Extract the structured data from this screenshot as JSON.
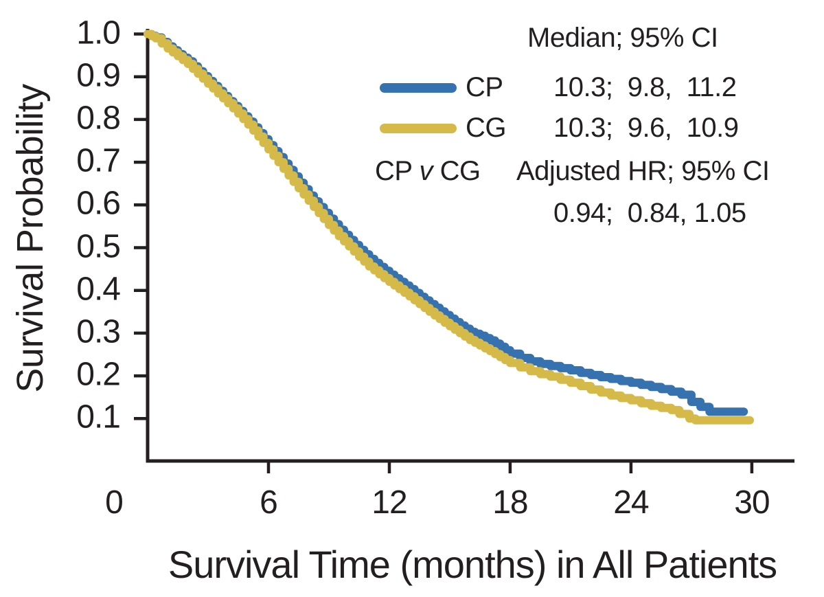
{
  "legend": {
    "header": "Median; 95% CI",
    "rows": [
      {
        "name": "CP",
        "values": "10.3;  9.8,  11.2"
      },
      {
        "name": "CG",
        "values": "10.3;  9.6,  10.9"
      }
    ],
    "comparison": {
      "pre": "CP ",
      "italic_v": "v",
      "post": " CG",
      "header": "Adjusted HR; 95% CI",
      "values": "0.94;  0.84, 1.05"
    }
  },
  "colors": {
    "cp": "#3672B0",
    "cg": "#D6BA49",
    "axis": "#231F20"
  },
  "chart_data": {
    "type": "line",
    "subtype": "kaplan-meier-step",
    "title": "",
    "xlabel": "Survival Time (months) in All Patients",
    "ylabel": "Survival Probability",
    "xlim": [
      0,
      32
    ],
    "ylim": [
      0,
      1.0
    ],
    "x_ticks": [
      0,
      6,
      12,
      18,
      24,
      30
    ],
    "y_ticks": [
      0.1,
      0.2,
      0.3,
      0.4,
      0.5,
      0.6,
      0.7,
      0.8,
      0.9,
      1.0
    ],
    "grid": false,
    "legend_position": "upper right",
    "series": [
      {
        "name": "CP",
        "color": "#3672B0",
        "median": "10.3",
        "ci_95": "9.8, 11.2",
        "x": [
          0,
          0.4,
          1,
          1.5,
          2,
          2.5,
          3,
          3.5,
          4,
          4.5,
          5,
          5.5,
          6,
          6.5,
          7,
          7.5,
          8,
          8.5,
          9,
          9.5,
          10,
          10.5,
          11,
          11.5,
          12,
          12.5,
          13,
          13.5,
          14,
          14.5,
          15,
          15.5,
          16,
          16.5,
          17,
          17.5,
          18,
          18.5,
          19,
          19.5,
          20,
          20.5,
          21,
          21.5,
          22,
          22.5,
          23,
          23.5,
          24,
          24.5,
          25,
          25.5,
          26,
          26.5,
          27,
          27.9,
          29.6
        ],
        "y": [
          1.0,
          0.992,
          0.971,
          0.953,
          0.936,
          0.913,
          0.89,
          0.867,
          0.843,
          0.82,
          0.795,
          0.768,
          0.74,
          0.712,
          0.682,
          0.652,
          0.622,
          0.595,
          0.568,
          0.542,
          0.518,
          0.495,
          0.474,
          0.455,
          0.437,
          0.42,
          0.403,
          0.385,
          0.368,
          0.351,
          0.334,
          0.318,
          0.303,
          0.294,
          0.283,
          0.268,
          0.252,
          0.242,
          0.234,
          0.228,
          0.223,
          0.218,
          0.213,
          0.207,
          0.202,
          0.197,
          0.193,
          0.188,
          0.184,
          0.179,
          0.174,
          0.169,
          0.163,
          0.156,
          0.139,
          0.116,
          0.116
        ]
      },
      {
        "name": "CG",
        "color": "#D6BA49",
        "median": "10.3",
        "ci_95": "9.6, 10.9",
        "x": [
          0,
          0.4,
          1,
          1.5,
          2,
          2.5,
          3,
          3.5,
          4,
          4.5,
          5,
          5.5,
          6,
          6.5,
          7,
          7.5,
          8,
          8.5,
          9,
          9.5,
          10,
          10.5,
          11,
          11.5,
          12,
          12.5,
          13,
          13.5,
          14,
          14.5,
          15,
          15.5,
          16,
          16.5,
          17,
          17.5,
          18,
          18.5,
          19,
          19.5,
          20,
          20.5,
          21,
          21.5,
          22,
          22.5,
          23,
          23.5,
          24,
          24.5,
          25,
          25.5,
          26,
          26.4,
          26.9,
          27.2,
          29.9
        ],
        "y": [
          1.0,
          0.99,
          0.966,
          0.948,
          0.93,
          0.907,
          0.884,
          0.861,
          0.838,
          0.814,
          0.788,
          0.76,
          0.73,
          0.7,
          0.669,
          0.639,
          0.61,
          0.581,
          0.553,
          0.527,
          0.503,
          0.479,
          0.456,
          0.438,
          0.42,
          0.403,
          0.386,
          0.368,
          0.35,
          0.333,
          0.316,
          0.3,
          0.284,
          0.271,
          0.258,
          0.244,
          0.23,
          0.22,
          0.211,
          0.204,
          0.198,
          0.191,
          0.184,
          0.176,
          0.168,
          0.161,
          0.154,
          0.148,
          0.143,
          0.136,
          0.13,
          0.125,
          0.12,
          0.111,
          0.1,
          0.096,
          0.096
        ]
      }
    ],
    "comparison": {
      "label": "CP v CG",
      "adjusted_hr": 0.94,
      "hr_95_ci": "0.84, 1.05"
    }
  }
}
